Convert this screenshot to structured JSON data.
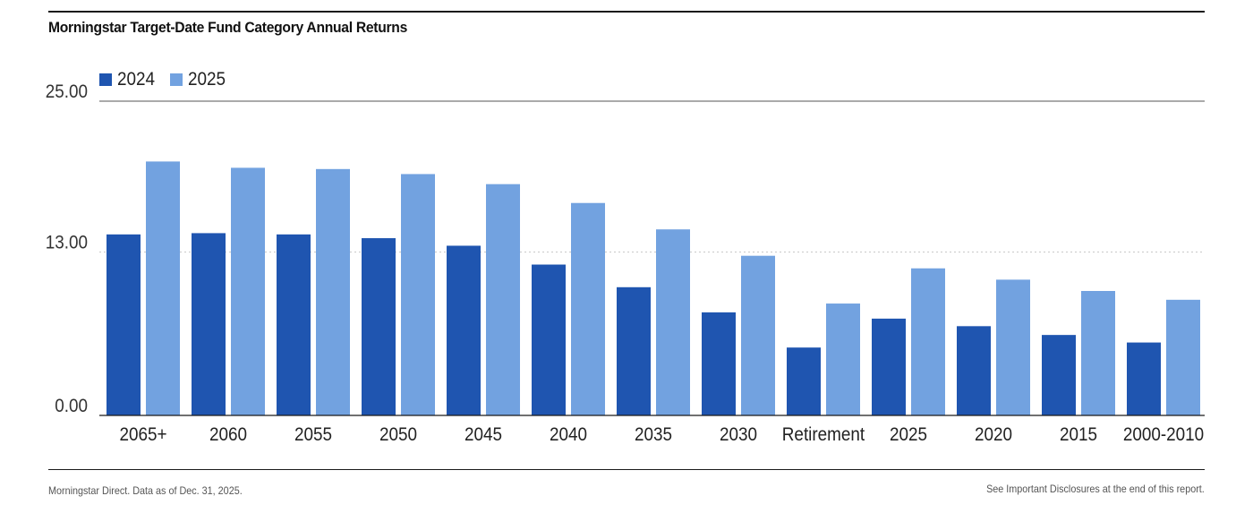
{
  "title": "Morningstar Target-Date Fund Category Annual Returns",
  "footer": {
    "source": "Morningstar Direct. Data as of Dec. 31, 2025.",
    "disclosure": "See Important Disclosures at the end of this report."
  },
  "colors": {
    "series_2024": "#1f55b0",
    "series_2025": "#72a2e0",
    "axis": "#1a1a1a",
    "grid": "#c8c8c8"
  },
  "chart_data": {
    "type": "bar",
    "title": "Morningstar Target-Date Fund Category Annual Returns",
    "xlabel": "",
    "ylabel": "",
    "ylim": [
      0,
      25
    ],
    "yticks": [
      {
        "value": 0,
        "label": "0.00"
      },
      {
        "value": 13,
        "label": "13.00"
      },
      {
        "value": 25,
        "label": "25.00"
      }
    ],
    "grid": "dotted horizontal line at 13.00",
    "legend": "top-left",
    "categories": [
      "2065+",
      "2060",
      "2055",
      "2050",
      "2045",
      "2040",
      "2035",
      "2030",
      "Retirement",
      "2025",
      "2020",
      "2015",
      "2000-2010"
    ],
    "series": [
      {
        "name": "2024",
        "color": "#1f55b0",
        "values": [
          14.4,
          14.5,
          14.4,
          14.1,
          13.5,
          12.0,
          10.2,
          8.2,
          5.4,
          7.7,
          7.1,
          6.4,
          5.8
        ]
      },
      {
        "name": "2025",
        "color": "#72a2e0",
        "values": [
          20.2,
          19.7,
          19.6,
          19.2,
          18.4,
          16.9,
          14.8,
          12.7,
          8.9,
          11.7,
          10.8,
          9.9,
          9.2
        ]
      }
    ]
  }
}
